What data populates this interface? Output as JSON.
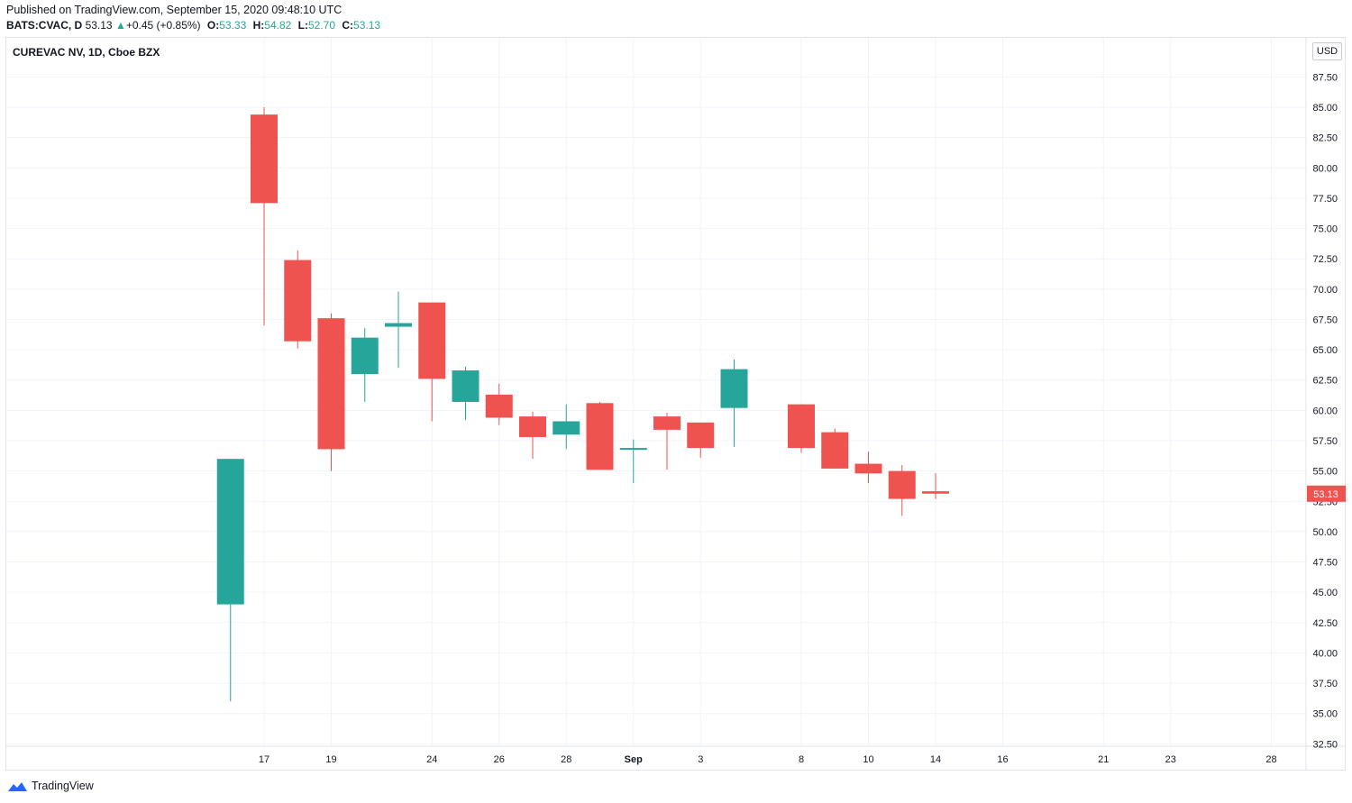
{
  "header": {
    "published": "Published on TradingView.com, September 15, 2020 09:48:10 UTC",
    "symbol": "BATS:CVAC, D",
    "price": "53.13",
    "change": "+0.45 (+0.85%)",
    "open_label": "O:",
    "open": "53.33",
    "high_label": "H:",
    "high": "54.82",
    "low_label": "L:",
    "low": "52.70",
    "close_label": "C:",
    "close": "53.13"
  },
  "chart_title": "CUREVAC NV, 1D, Cboe BZX",
  "currency": "USD",
  "footer": {
    "brand": "TradingView"
  },
  "colors": {
    "up": "#26a69a",
    "down": "#ef5350",
    "grid": "#f0f3fa",
    "axis_text": "#131722"
  },
  "chart_data": {
    "type": "candlestick",
    "title": "CUREVAC NV, 1D, Cboe BZX",
    "ylim": [
      31.0,
      89.5
    ],
    "yticks": [
      32.5,
      35,
      37.5,
      40,
      42.5,
      45,
      47.5,
      50,
      52.5,
      55,
      57.5,
      60,
      62.5,
      65,
      67.5,
      70,
      72.5,
      75,
      77.5,
      80,
      82.5,
      85,
      87.5
    ],
    "ytick_labels": [
      "32.50",
      "35.00",
      "37.50",
      "40.00",
      "42.50",
      "45.00",
      "47.50",
      "50.00",
      "52.50",
      "55.00",
      "57.50",
      "60.00",
      "62.50",
      "65.00",
      "67.50",
      "70.00",
      "72.50",
      "75.00",
      "77.50",
      "80.00",
      "82.50",
      "85.00",
      "87.50"
    ],
    "last_price": 53.13,
    "last_price_label": "53.13",
    "xticks": [
      {
        "label": "17",
        "date": "2020-08-17"
      },
      {
        "label": "19",
        "date": "2020-08-19"
      },
      {
        "label": "24",
        "date": "2020-08-24"
      },
      {
        "label": "26",
        "date": "2020-08-26"
      },
      {
        "label": "28",
        "date": "2020-08-28"
      },
      {
        "label": "Sep",
        "date": "2020-09-01"
      },
      {
        "label": "3",
        "date": "2020-09-03"
      },
      {
        "label": "8",
        "date": "2020-09-08"
      },
      {
        "label": "10",
        "date": "2020-09-10"
      },
      {
        "label": "14",
        "date": "2020-09-14"
      },
      {
        "label": "16",
        "date": "2020-09-16"
      },
      {
        "label": "21",
        "date": "2020-09-21"
      },
      {
        "label": "23",
        "date": "2020-09-23"
      },
      {
        "label": "28",
        "date": "2020-09-28"
      }
    ],
    "candles": [
      {
        "date": "2020-08-14",
        "o": 44.0,
        "h": 56.0,
        "l": 36.0,
        "c": 56.0
      },
      {
        "date": "2020-08-17",
        "o": 84.4,
        "h": 85.0,
        "l": 67.0,
        "c": 77.1
      },
      {
        "date": "2020-08-18",
        "o": 72.4,
        "h": 73.2,
        "l": 65.1,
        "c": 65.7
      },
      {
        "date": "2020-08-19",
        "o": 67.6,
        "h": 68.0,
        "l": 55.0,
        "c": 56.8
      },
      {
        "date": "2020-08-20",
        "o": 63.0,
        "h": 66.8,
        "l": 60.7,
        "c": 66.0
      },
      {
        "date": "2020-08-21",
        "o": 66.9,
        "h": 69.8,
        "l": 63.5,
        "c": 67.2
      },
      {
        "date": "2020-08-24",
        "o": 68.9,
        "h": 68.9,
        "l": 59.1,
        "c": 62.6
      },
      {
        "date": "2020-08-25",
        "o": 60.7,
        "h": 63.6,
        "l": 59.2,
        "c": 63.3
      },
      {
        "date": "2020-08-26",
        "o": 61.3,
        "h": 62.2,
        "l": 58.8,
        "c": 59.4
      },
      {
        "date": "2020-08-27",
        "o": 59.5,
        "h": 59.9,
        "l": 56.0,
        "c": 57.8
      },
      {
        "date": "2020-08-28",
        "o": 58.0,
        "h": 60.5,
        "l": 56.8,
        "c": 59.1
      },
      {
        "date": "2020-08-31",
        "o": 60.6,
        "h": 60.7,
        "l": 55.1,
        "c": 55.1
      },
      {
        "date": "2020-09-01",
        "o": 56.8,
        "h": 57.6,
        "l": 54.0,
        "c": 56.9
      },
      {
        "date": "2020-09-02",
        "o": 59.5,
        "h": 59.8,
        "l": 55.1,
        "c": 58.4
      },
      {
        "date": "2020-09-03",
        "o": 59.0,
        "h": 59.0,
        "l": 56.1,
        "c": 56.9
      },
      {
        "date": "2020-09-04",
        "o": 60.2,
        "h": 64.2,
        "l": 57.0,
        "c": 63.4
      },
      {
        "date": "2020-09-08",
        "o": 60.5,
        "h": 60.5,
        "l": 56.5,
        "c": 56.9
      },
      {
        "date": "2020-09-09",
        "o": 58.2,
        "h": 58.5,
        "l": 55.2,
        "c": 55.2
      },
      {
        "date": "2020-09-10",
        "o": 55.6,
        "h": 56.6,
        "l": 54.0,
        "c": 54.8
      },
      {
        "date": "2020-09-11",
        "o": 55.0,
        "h": 55.5,
        "l": 51.3,
        "c": 52.7
      },
      {
        "date": "2020-09-14",
        "o": 53.33,
        "h": 54.82,
        "l": 52.7,
        "c": 53.13
      }
    ]
  }
}
